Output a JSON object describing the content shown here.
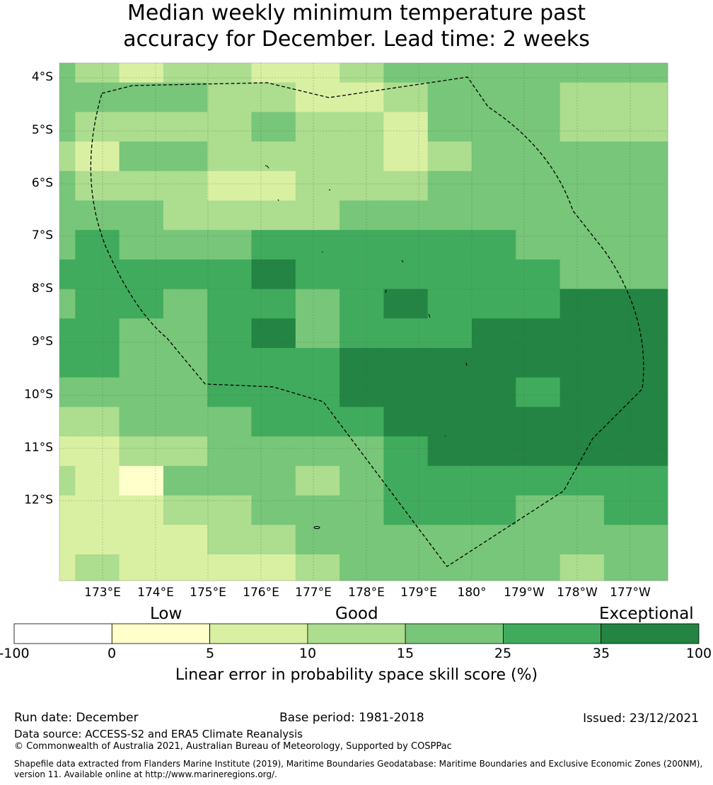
{
  "title": {
    "line1": "Median weekly minimum temperature past",
    "line2": "accuracy for December. Lead time: 2 weeks"
  },
  "map": {
    "lat_labels": [
      "4°S",
      "5°S",
      "6°S",
      "7°S",
      "8°S",
      "9°S",
      "10°S",
      "11°S",
      "12°S"
    ],
    "lon_labels": [
      "173°E",
      "174°E",
      "175°E",
      "176°E",
      "177°E",
      "178°E",
      "179°E",
      "180°",
      "179°W",
      "178°W",
      "177°W"
    ],
    "grid_rows": [
      "3212211233",
      "3333221123332",
      "3222232213332222",
      "2133222212333333",
      "3222112223333333",
      "3332222333333333",
      "3433344444433334",
      "4444454444443333",
      "3443443454445553",
      "4433453444555554",
      "4433444555555555",
      "3333444555545555",
      "2233344455555555",
      "1122333345555555",
      "2103332344444445",
      "1112233344433444",
      "1111223333333333",
      "1211112333332333"
    ]
  },
  "colorbar": {
    "categories": [
      "Low",
      "Good",
      "Exceptional"
    ],
    "ticks": [
      "-100",
      "0",
      "5",
      "10",
      "15",
      "25",
      "35",
      "100"
    ],
    "colors": [
      "#ffffff",
      "#ffffcc",
      "#d9f0a3",
      "#addd8e",
      "#78c679",
      "#41ab5d",
      "#238443"
    ],
    "label": "Linear error in probability space skill score (%)"
  },
  "footer": {
    "run_date": "Run date: December",
    "base_period": "Base period: 1981-2018",
    "issued": "Issued: 23/12/2021",
    "data_source": "Data source: ACCESS-S2 and ERA5 Climate Reanalysis",
    "copyright": "© Commonwealth of Australia 2021, Australian Bureau of Meteorology, Supported by COSPPac",
    "shapefile_line1": "Shapefile data extracted from Flanders Marine Institute (2019), Maritime Boundaries Geodatabase: Maritime Boundaries and Exclusive Economic Zones (200NM),",
    "shapefile_line2": "version 11. Available online at http://www.marineregions.org/."
  }
}
